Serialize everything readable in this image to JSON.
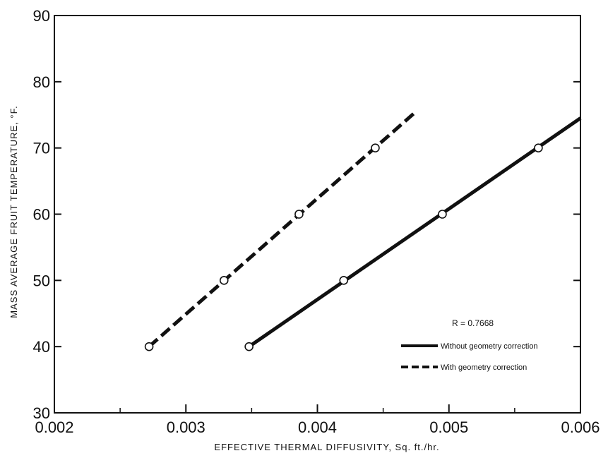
{
  "chart_data": {
    "type": "line",
    "xlabel": "EFFECTIVE THERMAL DIFFUSIVITY, Sq. ft./hr.",
    "ylabel": "MASS AVERAGE FRUIT TEMPERATURE, °F.",
    "xlim": [
      0.002,
      0.006
    ],
    "ylim": [
      30,
      90
    ],
    "x_ticks": [
      "0.002",
      "0.003",
      "0.004",
      "0.005",
      "0.006"
    ],
    "y_ticks": [
      "30",
      "40",
      "50",
      "60",
      "70",
      "80",
      "90"
    ],
    "grid": false,
    "annotation": "R = 0.7668",
    "legend_position": "bottom-right",
    "series": [
      {
        "name": "Without geometry correction",
        "style": "solid",
        "points": [
          {
            "x": 0.00348,
            "y": 40
          },
          {
            "x": 0.0042,
            "y": 50
          },
          {
            "x": 0.00495,
            "y": 60
          },
          {
            "x": 0.00568,
            "y": 70
          }
        ],
        "fit_line": [
          {
            "x": 0.00348,
            "y": 40
          },
          {
            "x": 0.006,
            "y": 74.5
          }
        ]
      },
      {
        "name": "With geometry correction",
        "style": "dashed",
        "points": [
          {
            "x": 0.00272,
            "y": 40
          },
          {
            "x": 0.00329,
            "y": 50
          },
          {
            "x": 0.00386,
            "y": 60
          },
          {
            "x": 0.00444,
            "y": 70
          }
        ],
        "fit_line": [
          {
            "x": 0.00272,
            "y": 40
          },
          {
            "x": 0.00475,
            "y": 75.5
          }
        ]
      }
    ]
  }
}
